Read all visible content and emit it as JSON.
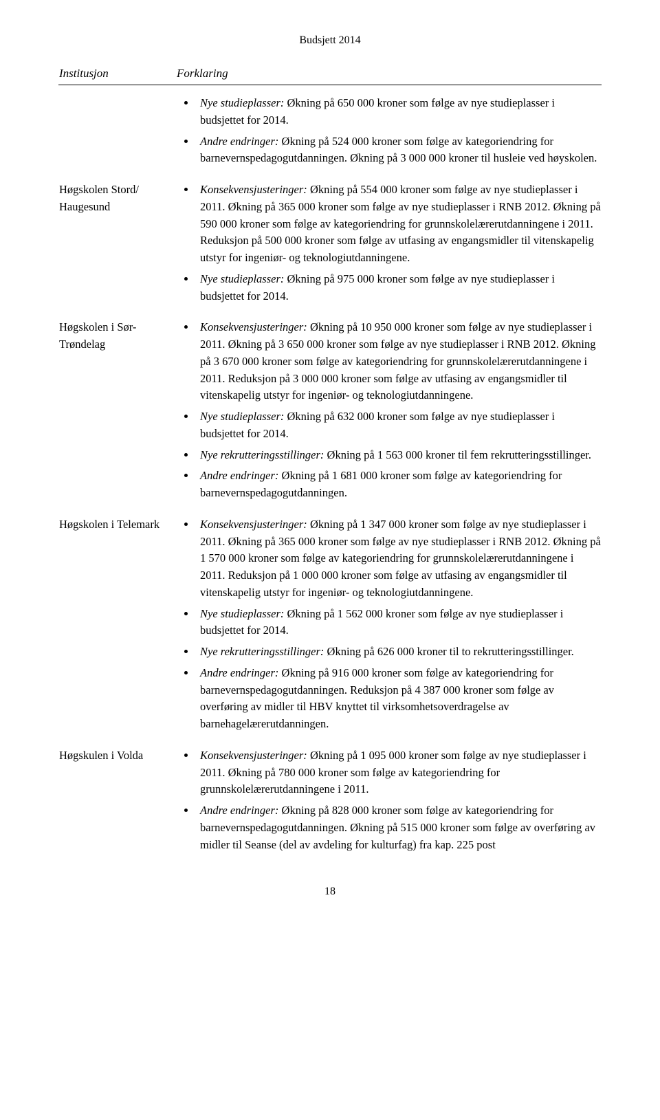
{
  "doc_title": "Budsjett 2014",
  "headers": {
    "institution": "Institusjon",
    "explanation": "Forklaring"
  },
  "rows": [
    {
      "institution": "",
      "paragraphs": [
        "<em>Nye studieplasser:</em> Økning på 650 000 kroner som følge av nye studieplasser i budsjettet for 2014.",
        "<em>Andre endringer:</em> Økning på 524 000 kroner som følge av kategoriendring for barnevernspedagogutdanningen. Økning på 3 000 000 kroner til husleie ved høyskolen."
      ]
    },
    {
      "institution": "Høgskolen Stord/ Haugesund",
      "paragraphs": [
        "<em>Konsekvensjusteringer:</em> Økning på 554 000 kroner som følge av nye studieplasser i 2011. Økning på 365 000 kroner som følge av nye studieplasser i RNB 2012. Økning på 590 000 kroner som følge av kategoriendring for grunnskolelærerutdanningene i 2011. Reduksjon på 500 000 kroner som følge av utfasing av engangsmidler til vitenskapelig utstyr for ingeniør- og teknologiutdanningene.",
        "<em>Nye studieplasser:</em> Økning på 975 000 kroner som følge av nye studieplasser i budsjettet for 2014."
      ]
    },
    {
      "institution": "Høgskolen i Sør-Trøndelag",
      "paragraphs": [
        "<em>Konsekvensjusteringer:</em> Økning på 10 950 000 kroner som følge av nye studieplasser i 2011. Økning på 3 650 000 kroner som følge av nye studieplasser i RNB 2012. Økning på 3 670 000 kroner som følge av kategoriendring for grunnskolelærerutdanningene i 2011. Reduksjon på 3 000 000 kroner som følge av utfasing av engangsmidler til vitenskapelig utstyr for ingeniør- og teknologiutdanningene.",
        "<em>Nye studieplasser:</em> Økning på 632 000 kroner som følge av nye studieplasser i budsjettet for 2014.",
        "<em>Nye rekrutteringsstillinger:</em> Økning på 1 563 000 kroner til fem rekrutteringsstillinger.",
        "<em>Andre endringer:</em> Økning på 1 681 000 kroner som følge av kategoriendring for barnevernspedagogutdanningen."
      ]
    },
    {
      "institution": "Høgskolen i Telemark",
      "paragraphs": [
        "<em>Konsekvensjusteringer:</em> Økning på 1 347 000 kroner som følge av nye studieplasser i 2011. Økning på 365 000 kroner som følge av nye studieplasser i RNB 2012. Økning på 1 570 000 kroner som følge av kategoriendring for grunnskolelærerutdanningene i 2011. Reduksjon på 1 000 000 kroner som følge av utfasing av engangsmidler til vitenskapelig utstyr for ingeniør- og teknologiutdanningene.",
        "<em>Nye studieplasser:</em> Økning på 1 562 000 kroner som følge av nye studieplasser i budsjettet for 2014.",
        "<em>Nye rekrutteringsstillinger:</em> Økning på 626 000 kroner til to rekrutteringsstillinger.",
        "<em>Andre endringer:</em> Økning på 916 000 kroner som følge av kategoriendring for barnevernspedagogutdanningen. Reduksjon på 4 387 000 kroner som følge av overføring av midler til HBV knyttet til virksomhetsoverdragelse av barnehagelærerutdanningen."
      ]
    },
    {
      "institution": "Høgskulen i Volda",
      "paragraphs": [
        "<em>Konsekvensjusteringer:</em> Økning på 1 095 000 kroner som følge av nye studieplasser i 2011. Økning på 780 000 kroner som følge av kategoriendring for grunnskolelærerutdanningene i 2011.",
        "<em>Andre endringer:</em> Økning på 828 000 kroner som følge av kategoriendring for barnevernspedagogutdanningen. Økning på 515 000 kroner som følge av overføring av midler til Seanse (del av avdeling for kulturfag) fra kap. 225 post"
      ]
    }
  ],
  "page_number": "18"
}
